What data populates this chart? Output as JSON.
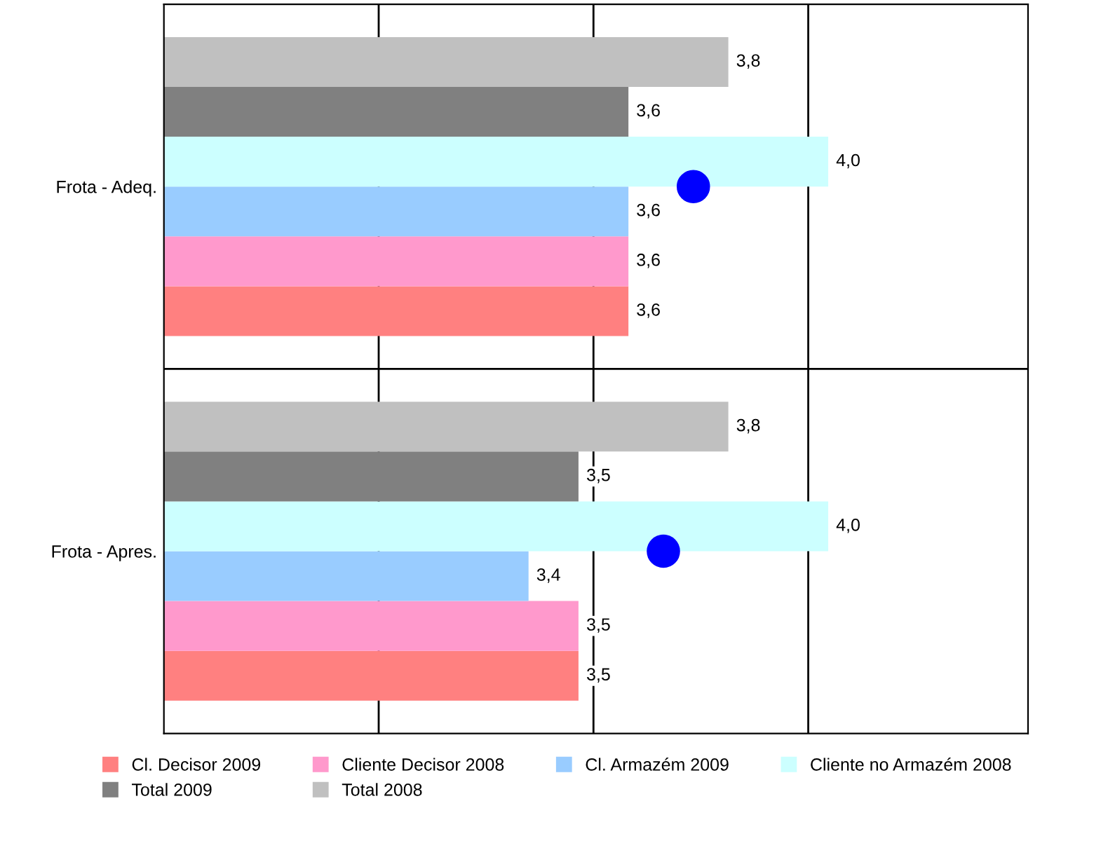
{
  "chart_data": {
    "type": "bar",
    "orientation": "horizontal",
    "categories": [
      "Frota - Adeq.",
      "Frota - Apres."
    ],
    "series": [
      {
        "name": "Cl. Decisor 2009",
        "color": "#ff8080",
        "values": [
          3.6,
          3.5
        ],
        "value_labels": [
          "3,6",
          "3,5"
        ]
      },
      {
        "name": "Cliente Decisor 2008",
        "color": "#ff99cc",
        "values": [
          3.6,
          3.5
        ],
        "value_labels": [
          "3,6",
          "3,5"
        ]
      },
      {
        "name": "Cl. Armazém 2009",
        "color": "#99ccff",
        "values": [
          3.6,
          3.4
        ],
        "value_labels": [
          "3,6",
          "3,4"
        ]
      },
      {
        "name": "Cliente no Armazém 2008",
        "color": "#ccffff",
        "values": [
          4.0,
          4.0
        ],
        "value_labels": [
          "4,0",
          "4,0"
        ]
      },
      {
        "name": "Total 2009",
        "color": "#808080",
        "values": [
          3.6,
          3.5
        ],
        "value_labels": [
          "3,6",
          "3,5"
        ]
      },
      {
        "name": "Total 2008",
        "color": "#c0c0c0",
        "values": [
          3.8,
          3.8
        ],
        "value_labels": [
          "3,8",
          "3,8"
        ]
      },
      {
        "type": "scatter",
        "color": "#0000ff",
        "values": [
          3.73,
          3.67
        ],
        "marker": "circle"
      }
    ],
    "xlim": [
      2.67,
      4.4
    ],
    "xticks": [
      {
        "value": 3.1,
        "label": null
      },
      {
        "value": 3.53,
        "label": null
      },
      {
        "value": 3.96,
        "label": null
      }
    ],
    "grid": "x",
    "legend": "bottom",
    "tick_labels": "y"
  }
}
